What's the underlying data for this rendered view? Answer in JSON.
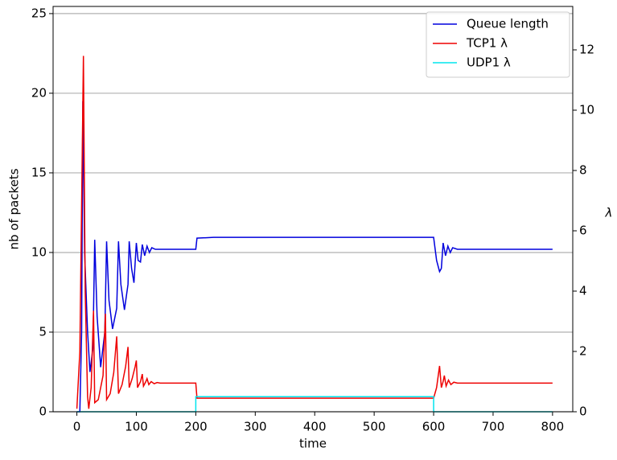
{
  "chart_data": {
    "type": "line",
    "xlabel": "time",
    "ylabel": "nb of packets",
    "y2label": "λ",
    "xlim": [
      -40,
      834
    ],
    "ylim": [
      0,
      25.45
    ],
    "y2lim": [
      0,
      13.44
    ],
    "xticks": [
      0,
      100,
      200,
      300,
      400,
      500,
      600,
      700,
      800
    ],
    "yticks": [
      0,
      5,
      10,
      15,
      20,
      25
    ],
    "y2ticks": [
      0,
      2,
      4,
      6,
      8,
      10,
      12
    ],
    "grid": true,
    "legend": "upper right",
    "series": [
      {
        "name": "Queue length",
        "color": "#0000dd",
        "x": [
          0,
          5,
          8,
          10,
          13,
          18,
          22,
          27,
          30,
          34,
          40,
          47,
          50,
          54,
          60,
          67,
          70,
          74,
          80,
          86,
          88,
          92,
          96,
          100,
          103,
          107,
          110,
          114,
          118,
          122,
          126,
          132,
          200,
          202,
          230,
          600,
          605,
          610,
          613,
          616,
          620,
          624,
          628,
          632,
          640,
          800
        ],
        "values": [
          0,
          0,
          5,
          19.5,
          10,
          5,
          2.5,
          4,
          10.8,
          6,
          2.8,
          5,
          10.7,
          7,
          5.2,
          6.5,
          10.7,
          8,
          6.4,
          8,
          10.7,
          9,
          8.1,
          10.6,
          9.5,
          9.4,
          10.5,
          9.8,
          10.4,
          10.0,
          10.3,
          10.2,
          10.2,
          10.9,
          10.95,
          10.95,
          9.5,
          8.8,
          9.0,
          10.6,
          9.8,
          10.4,
          10.0,
          10.3,
          10.2,
          10.2
        ]
      },
      {
        "name": "TCP1 λ",
        "color": "#ee0000",
        "axis": "y2",
        "x": [
          0,
          5,
          11,
          14,
          18,
          20,
          24,
          28,
          30,
          36,
          44,
          48,
          50,
          56,
          62,
          67,
          70,
          76,
          82,
          86,
          88,
          93,
          98,
          100,
          102,
          107,
          110,
          112,
          116,
          118,
          121,
          125,
          130,
          135,
          140,
          200,
          202,
          600,
          605,
          610,
          613,
          616,
          618,
          621,
          625,
          629,
          634,
          640,
          800
        ],
        "values": [
          0.1,
          2,
          11.8,
          4,
          0.5,
          0.1,
          0.8,
          3.35,
          0.3,
          0.4,
          1.2,
          3.25,
          0.4,
          0.6,
          1.3,
          2.5,
          0.6,
          0.9,
          1.5,
          2.15,
          0.8,
          1.1,
          1.5,
          1.7,
          0.8,
          1.0,
          1.25,
          0.85,
          1.0,
          1.1,
          0.9,
          1.0,
          0.93,
          0.97,
          0.95,
          0.95,
          0.45,
          0.45,
          0.8,
          1.52,
          0.8,
          1.0,
          1.2,
          0.85,
          1.05,
          0.9,
          0.98,
          0.95,
          0.95
        ]
      },
      {
        "name": "UDP1 λ",
        "color": "#00e5ee",
        "axis": "y2",
        "x": [
          0,
          200,
          200,
          600,
          600,
          800
        ],
        "values": [
          0,
          0,
          0.5,
          0.5,
          0,
          0
        ]
      }
    ]
  }
}
